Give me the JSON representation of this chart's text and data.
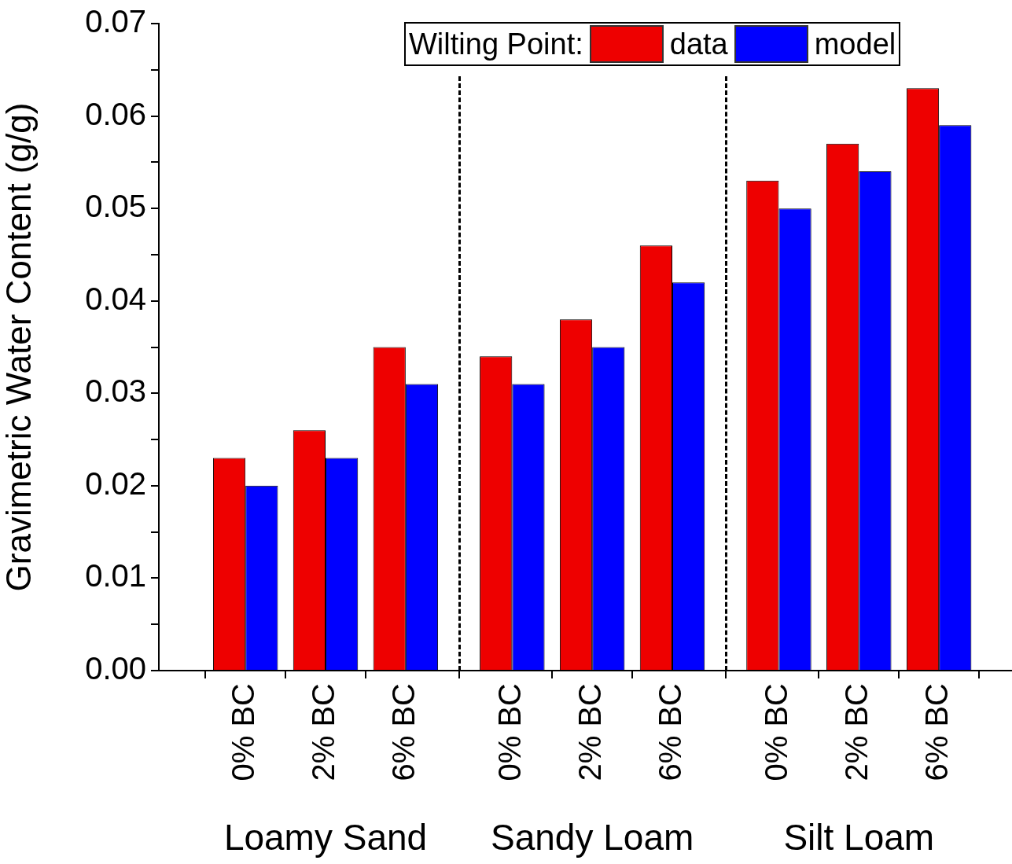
{
  "chart_data": {
    "type": "bar",
    "ylabel": "Gravimetric Water Content (g/g)",
    "legend_title": "Wilting Point:",
    "legend": "top",
    "categories": [
      "0% BC",
      "2% BC",
      "6% BC",
      "0% BC",
      "2% BC",
      "6% BC",
      "0% BC",
      "2% BC",
      "6% BC"
    ],
    "series": [
      {
        "name": "data",
        "color": "#ee0000",
        "values": [
          0.023,
          0.026,
          0.035,
          0.034,
          0.038,
          0.046,
          0.053,
          0.057,
          0.063
        ]
      },
      {
        "name": "model",
        "color": "#0000ff",
        "values": [
          0.02,
          0.023,
          0.031,
          0.031,
          0.035,
          0.042,
          0.05,
          0.054,
          0.059
        ]
      }
    ],
    "annotations": [
      "Loamy Sand",
      "Sandy Loam",
      "Silt Loam"
    ],
    "ylim": [
      0,
      0.07
    ],
    "yticks": [
      {
        "value": 0,
        "label": "0.00"
      },
      {
        "value": 0.005,
        "label": null
      },
      {
        "value": 0.01,
        "label": "0.01"
      },
      {
        "value": 0.015,
        "label": null
      },
      {
        "value": 0.02,
        "label": "0.02"
      },
      {
        "value": 0.025,
        "label": null
      },
      {
        "value": 0.03,
        "label": "0.03"
      },
      {
        "value": 0.035,
        "label": null
      },
      {
        "value": 0.04,
        "label": "0.04"
      },
      {
        "value": 0.045,
        "label": null
      },
      {
        "value": 0.05,
        "label": "0.05"
      },
      {
        "value": 0.055,
        "label": null
      },
      {
        "value": 0.06,
        "label": "0.06"
      },
      {
        "value": 0.065,
        "label": null
      },
      {
        "value": 0.07,
        "label": "0.07"
      }
    ],
    "grid": false
  }
}
